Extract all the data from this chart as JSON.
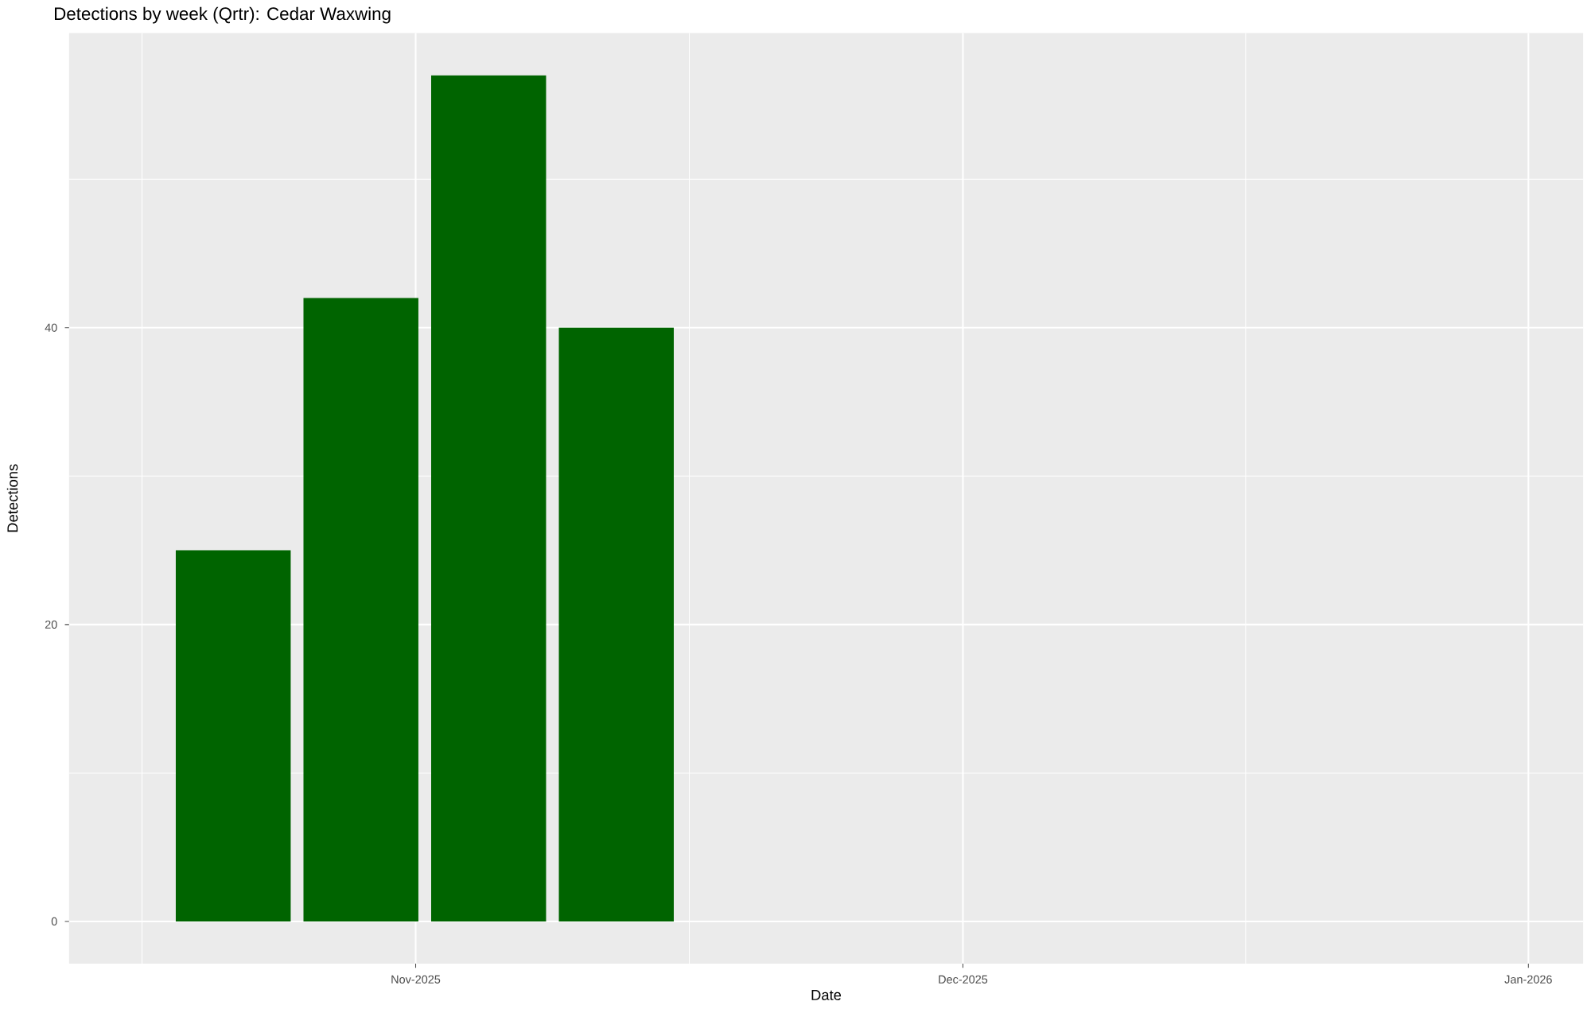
{
  "chart_data": {
    "type": "bar",
    "title": "Detections by week (Qrtr): Cedar Waxwing",
    "xlabel": "Date",
    "ylabel": "Detections",
    "x": [
      "2025-10-22",
      "2025-10-29",
      "2025-11-05",
      "2025-11-12"
    ],
    "values": [
      25,
      42,
      57,
      40
    ],
    "color": "#006400",
    "xlim": [
      "2025-10-13",
      "2026-01-04"
    ],
    "xticks": [
      {
        "value": "2025-11-01",
        "label": "Nov-2025"
      },
      {
        "value": "2025-12-01",
        "label": "Dec-2025"
      },
      {
        "value": "2026-01-01",
        "label": "Jan-2026"
      }
    ],
    "ylim": [
      -2.85,
      59.85
    ],
    "yticks": [
      0,
      20,
      40
    ],
    "grid": true
  }
}
